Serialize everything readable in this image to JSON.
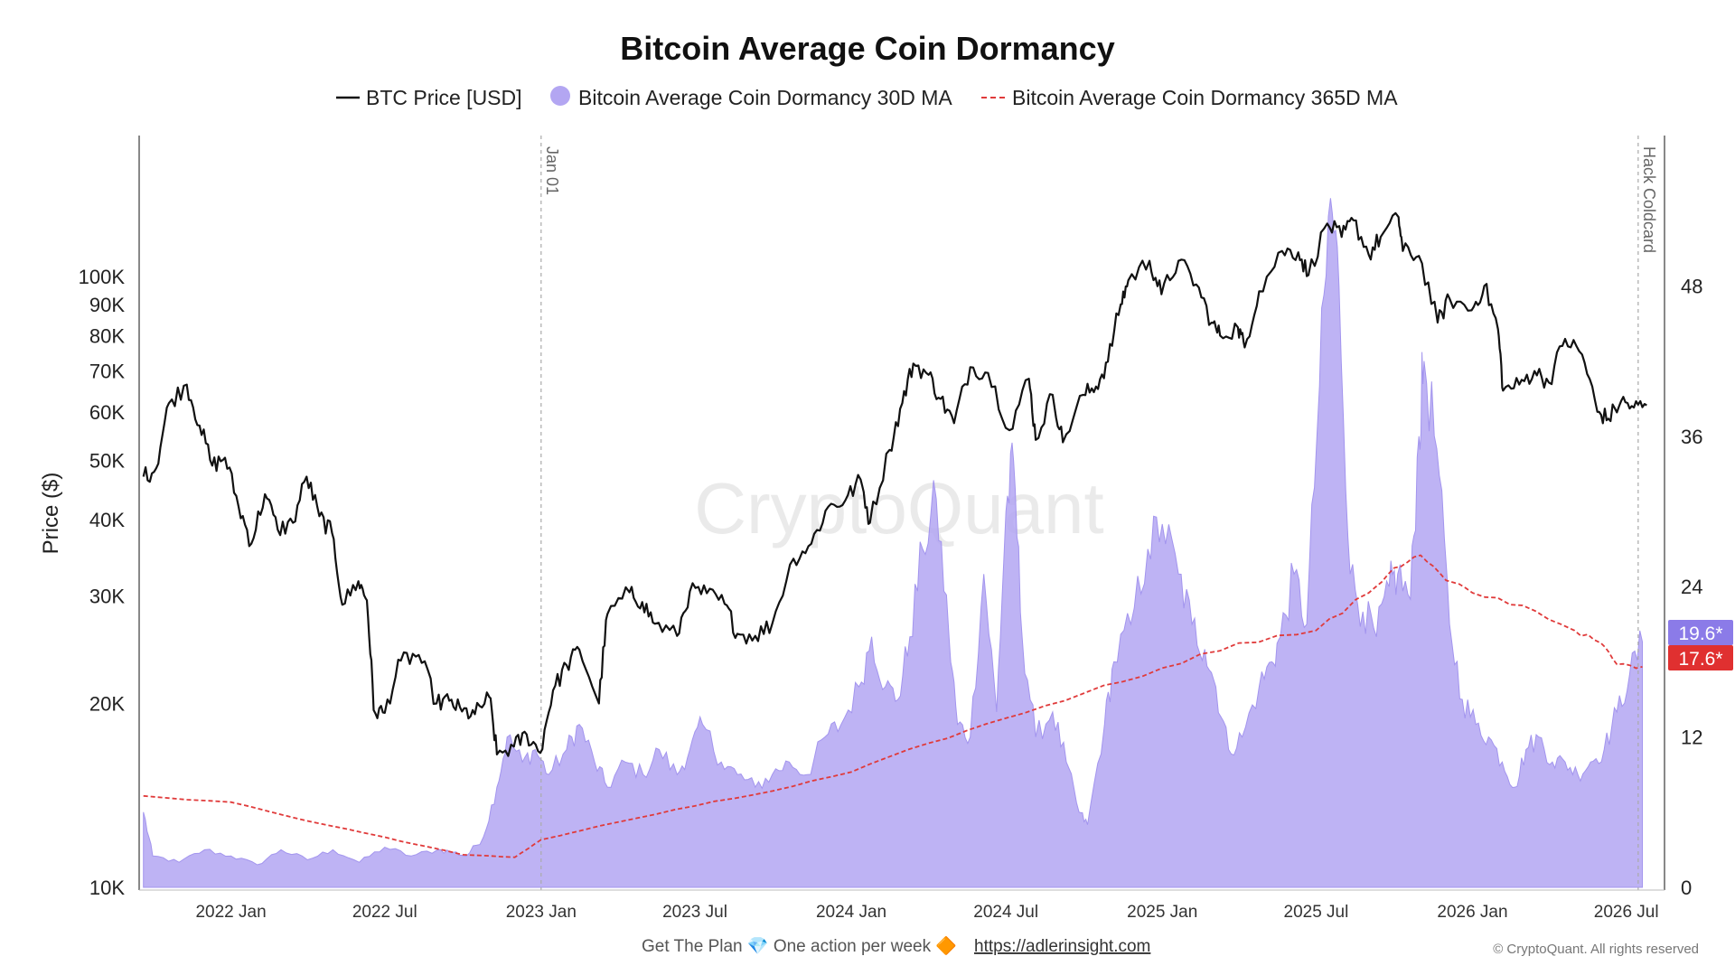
{
  "chart_data": {
    "type": "line",
    "title": "Bitcoin Average Coin Dormancy",
    "legend": {
      "placement": "top",
      "entries": [
        {
          "label": "BTC Price [USD]",
          "color": "#111111",
          "style": "solid-line"
        },
        {
          "label": "Bitcoin Average Coin Dormancy 30D MA",
          "color": "#b3a6f2",
          "style": "area"
        },
        {
          "label": "Bitcoin Average Coin Dormancy 365D MA",
          "color": "#e03a3a",
          "style": "dashed-line"
        }
      ]
    },
    "ylabel_left": "Price ($)",
    "y_left_scale": "log",
    "y_left_range": [
      10000,
      170000
    ],
    "y_left_ticks": [
      {
        "value": 10000,
        "label": "10K"
      },
      {
        "value": 20000,
        "label": "20K"
      },
      {
        "value": 30000,
        "label": "30K"
      },
      {
        "value": 40000,
        "label": "40K"
      },
      {
        "value": 50000,
        "label": "50K"
      },
      {
        "value": 60000,
        "label": "60K"
      },
      {
        "value": 70000,
        "label": "70K"
      },
      {
        "value": 80000,
        "label": "80K"
      },
      {
        "value": 90000,
        "label": "90K"
      },
      {
        "value": 100000,
        "label": "100K"
      }
    ],
    "y_right_range": [
      0,
      60
    ],
    "y_right_ticks": [
      {
        "value": 0,
        "label": "0"
      },
      {
        "value": 12,
        "label": "12"
      },
      {
        "value": 24,
        "label": "24"
      },
      {
        "value": 36,
        "label": "36"
      },
      {
        "value": 48,
        "label": "48"
      }
    ],
    "x_range": [
      "2021-09-15",
      "2026-08-15"
    ],
    "x_ticks": [
      {
        "value": "2022-01-01",
        "label": "2022 Jan"
      },
      {
        "value": "2022-07-01",
        "label": "2022 Jul"
      },
      {
        "value": "2023-01-01",
        "label": "2023 Jan"
      },
      {
        "value": "2023-07-01",
        "label": "2023 Jul"
      },
      {
        "value": "2024-01-01",
        "label": "2024 Jan"
      },
      {
        "value": "2024-07-01",
        "label": "2024 Jul"
      },
      {
        "value": "2025-01-01",
        "label": "2025 Jan"
      },
      {
        "value": "2025-07-01",
        "label": "2025 Jul"
      },
      {
        "value": "2026-01-01",
        "label": "2026 Jan"
      },
      {
        "value": "2026-07-01",
        "label": "2026 Jul"
      }
    ],
    "grid": false,
    "annotations": [
      {
        "x": "2023-01-01",
        "label": "Jan 01",
        "style": "vertical-dashed"
      },
      {
        "x": "2026-07-15",
        "label": "Hack Coldcard",
        "style": "vertical-dashed"
      }
    ],
    "badges": [
      {
        "label": "19.6*",
        "value": 19.6,
        "color": "#8b7be8"
      },
      {
        "label": "17.6*",
        "value": 17.6,
        "color": "#e03030"
      }
    ],
    "watermark": "CryptoQuant",
    "series": [
      {
        "name": "BTC Price [USD]",
        "axis": "left",
        "color": "#111111",
        "points": [
          [
            "2021-09-20",
            47000
          ],
          [
            "2021-10-05",
            48500
          ],
          [
            "2021-10-20",
            62000
          ],
          [
            "2021-11-10",
            66500
          ],
          [
            "2021-11-25",
            57000
          ],
          [
            "2021-12-10",
            49000
          ],
          [
            "2021-12-25",
            50500
          ],
          [
            "2022-01-10",
            42000
          ],
          [
            "2022-01-25",
            36500
          ],
          [
            "2022-02-10",
            44000
          ],
          [
            "2022-02-25",
            38500
          ],
          [
            "2022-03-15",
            39500
          ],
          [
            "2022-03-31",
            47000
          ],
          [
            "2022-04-15",
            40500
          ],
          [
            "2022-04-30",
            38000
          ],
          [
            "2022-05-12",
            29000
          ],
          [
            "2022-05-31",
            31700
          ],
          [
            "2022-06-10",
            29500
          ],
          [
            "2022-06-18",
            19500
          ],
          [
            "2022-07-01",
            19300
          ],
          [
            "2022-07-20",
            23500
          ],
          [
            "2022-08-10",
            24000
          ],
          [
            "2022-08-31",
            20000
          ],
          [
            "2022-09-15",
            20200
          ],
          [
            "2022-09-30",
            19400
          ],
          [
            "2022-10-15",
            19200
          ],
          [
            "2022-11-01",
            20500
          ],
          [
            "2022-11-10",
            16500
          ],
          [
            "2022-11-30",
            17000
          ],
          [
            "2022-12-15",
            17800
          ],
          [
            "2022-12-31",
            16600
          ],
          [
            "2023-01-15",
            21000
          ],
          [
            "2023-01-31",
            23100
          ],
          [
            "2023-02-15",
            24500
          ],
          [
            "2023-03-10",
            20000
          ],
          [
            "2023-03-20",
            28000
          ],
          [
            "2023-04-15",
            30400
          ],
          [
            "2023-04-30",
            29300
          ],
          [
            "2023-05-15",
            27000
          ],
          [
            "2023-06-10",
            25800
          ],
          [
            "2023-06-25",
            30500
          ],
          [
            "2023-07-15",
            30300
          ],
          [
            "2023-08-05",
            29100
          ],
          [
            "2023-08-20",
            26000
          ],
          [
            "2023-09-10",
            25800
          ],
          [
            "2023-09-30",
            27000
          ],
          [
            "2023-10-25",
            34500
          ],
          [
            "2023-11-15",
            36500
          ],
          [
            "2023-12-05",
            42000
          ],
          [
            "2023-12-25",
            43000
          ],
          [
            "2024-01-12",
            46500
          ],
          [
            "2024-01-23",
            39500
          ],
          [
            "2024-02-15",
            52000
          ],
          [
            "2024-03-01",
            62000
          ],
          [
            "2024-03-14",
            72000
          ],
          [
            "2024-04-01",
            69000
          ],
          [
            "2024-04-15",
            63000
          ],
          [
            "2024-05-01",
            57500
          ],
          [
            "2024-05-20",
            71000
          ],
          [
            "2024-06-10",
            69500
          ],
          [
            "2024-07-05",
            56000
          ],
          [
            "2024-07-28",
            68000
          ],
          [
            "2024-08-05",
            54000
          ],
          [
            "2024-08-25",
            64000
          ],
          [
            "2024-09-06",
            53500
          ],
          [
            "2024-09-30",
            64000
          ],
          [
            "2024-10-15",
            66000
          ],
          [
            "2024-10-29",
            72500
          ],
          [
            "2024-11-13",
            90000
          ],
          [
            "2024-11-22",
            98500
          ],
          [
            "2024-12-17",
            106000
          ],
          [
            "2024-12-31",
            93500
          ],
          [
            "2025-01-20",
            106000
          ],
          [
            "2025-02-10",
            97000
          ],
          [
            "2025-02-28",
            84000
          ],
          [
            "2025-03-10",
            80000
          ],
          [
            "2025-03-31",
            82500
          ],
          [
            "2025-04-08",
            76500
          ],
          [
            "2025-04-25",
            94500
          ],
          [
            "2025-05-22",
            110000
          ],
          [
            "2025-06-10",
            109500
          ],
          [
            "2025-06-22",
            100500
          ],
          [
            "2025-07-14",
            122000
          ],
          [
            "2025-07-31",
            116000
          ],
          [
            "2025-08-14",
            123500
          ],
          [
            "2025-09-01",
            108500
          ],
          [
            "2025-09-15",
            116000
          ],
          [
            "2025-10-06",
            125000
          ],
          [
            "2025-10-11",
            110000
          ],
          [
            "2025-10-30",
            108000
          ],
          [
            "2025-11-21",
            84000
          ],
          [
            "2025-12-05",
            92000
          ],
          [
            "2025-12-31",
            88000
          ],
          [
            "2026-01-15",
            96500
          ],
          [
            "2026-01-31",
            82000
          ],
          [
            "2026-02-06",
            65000
          ],
          [
            "2026-02-25",
            66500
          ],
          [
            "2026-03-15",
            70000
          ],
          [
            "2026-04-01",
            67000
          ],
          [
            "2026-04-20",
            79000
          ],
          [
            "2026-05-10",
            74500
          ],
          [
            "2026-05-28",
            60000
          ],
          [
            "2026-06-10",
            58500
          ],
          [
            "2026-06-25",
            62500
          ],
          [
            "2026-07-10",
            61000
          ],
          [
            "2026-07-25",
            61500
          ]
        ]
      },
      {
        "name": "Bitcoin Average Coin Dormancy 30D MA",
        "axis": "right",
        "color": "#b3a6f2",
        "points": [
          [
            "2021-09-20",
            6
          ],
          [
            "2021-10-01",
            2.5
          ],
          [
            "2021-11-01",
            2
          ],
          [
            "2021-12-01",
            3
          ],
          [
            "2022-01-01",
            2.5
          ],
          [
            "2022-02-01",
            1.8
          ],
          [
            "2022-03-01",
            3
          ],
          [
            "2022-04-01",
            2.2
          ],
          [
            "2022-05-01",
            3
          ],
          [
            "2022-06-01",
            2
          ],
          [
            "2022-07-01",
            3.2
          ],
          [
            "2022-08-01",
            2.5
          ],
          [
            "2022-09-01",
            3
          ],
          [
            "2022-09-20",
            2.8
          ],
          [
            "2022-10-05",
            2.5
          ],
          [
            "2022-10-25",
            4
          ],
          [
            "2022-11-10",
            8
          ],
          [
            "2022-11-22",
            12
          ],
          [
            "2022-12-10",
            10
          ],
          [
            "2022-12-25",
            11
          ],
          [
            "2023-01-10",
            9
          ],
          [
            "2023-01-31",
            11
          ],
          [
            "2023-02-15",
            13
          ],
          [
            "2023-03-05",
            10
          ],
          [
            "2023-03-20",
            8
          ],
          [
            "2023-04-10",
            10
          ],
          [
            "2023-05-01",
            9
          ],
          [
            "2023-05-20",
            11
          ],
          [
            "2023-06-10",
            9
          ],
          [
            "2023-06-25",
            11
          ],
          [
            "2023-07-10",
            13
          ],
          [
            "2023-08-01",
            10
          ],
          [
            "2023-08-20",
            9
          ],
          [
            "2023-09-10",
            8
          ],
          [
            "2023-09-30",
            9
          ],
          [
            "2023-10-20",
            10
          ],
          [
            "2023-11-10",
            9
          ],
          [
            "2023-12-01",
            12
          ],
          [
            "2023-12-20",
            13
          ],
          [
            "2024-01-10",
            16
          ],
          [
            "2024-01-25",
            20
          ],
          [
            "2024-02-10",
            16
          ],
          [
            "2024-02-25",
            15
          ],
          [
            "2024-03-10",
            20
          ],
          [
            "2024-03-25",
            27
          ],
          [
            "2024-04-10",
            31
          ],
          [
            "2024-04-25",
            20
          ],
          [
            "2024-05-05",
            13
          ],
          [
            "2024-05-20",
            12
          ],
          [
            "2024-06-05",
            25
          ],
          [
            "2024-06-20",
            14
          ],
          [
            "2024-07-01",
            30
          ],
          [
            "2024-07-10",
            34
          ],
          [
            "2024-07-20",
            20
          ],
          [
            "2024-08-05",
            12
          ],
          [
            "2024-08-25",
            14
          ],
          [
            "2024-09-10",
            10
          ],
          [
            "2024-09-25",
            6
          ],
          [
            "2024-10-05",
            5
          ],
          [
            "2024-10-25",
            13
          ],
          [
            "2024-11-05",
            18
          ],
          [
            "2024-11-25",
            21
          ],
          [
            "2024-12-15",
            27
          ],
          [
            "2025-01-01",
            29
          ],
          [
            "2025-01-20",
            25
          ],
          [
            "2025-02-05",
            21
          ],
          [
            "2025-02-20",
            19
          ],
          [
            "2025-03-05",
            16
          ],
          [
            "2025-03-20",
            11
          ],
          [
            "2025-04-05",
            12
          ],
          [
            "2025-04-25",
            16
          ],
          [
            "2025-05-10",
            18
          ],
          [
            "2025-05-20",
            20
          ],
          [
            "2025-06-05",
            25
          ],
          [
            "2025-06-20",
            21
          ],
          [
            "2025-07-05",
            40
          ],
          [
            "2025-07-18",
            55
          ],
          [
            "2025-07-28",
            48
          ],
          [
            "2025-08-10",
            25
          ],
          [
            "2025-08-25",
            22
          ],
          [
            "2025-09-10",
            20
          ],
          [
            "2025-09-25",
            24
          ],
          [
            "2025-10-05",
            25
          ],
          [
            "2025-10-20",
            23
          ],
          [
            "2025-10-30",
            36
          ],
          [
            "2025-11-05",
            42
          ],
          [
            "2025-11-20",
            35
          ],
          [
            "2025-12-05",
            21
          ],
          [
            "2025-12-20",
            15
          ],
          [
            "2026-01-05",
            13
          ],
          [
            "2026-01-20",
            12
          ],
          [
            "2026-02-05",
            10
          ],
          [
            "2026-02-20",
            8
          ],
          [
            "2026-03-05",
            11
          ],
          [
            "2026-03-20",
            12
          ],
          [
            "2026-04-05",
            10
          ],
          [
            "2026-04-20",
            10
          ],
          [
            "2026-05-05",
            9
          ],
          [
            "2026-05-20",
            10
          ],
          [
            "2026-06-05",
            11
          ],
          [
            "2026-06-20",
            14
          ],
          [
            "2026-07-05",
            17
          ],
          [
            "2026-07-20",
            19.6
          ]
        ]
      },
      {
        "name": "Bitcoin Average Coin Dormancy 365D MA",
        "axis": "right",
        "color": "#e03a3a",
        "points": [
          [
            "2021-09-20",
            7.3
          ],
          [
            "2022-01-01",
            6.8
          ],
          [
            "2022-04-01",
            5.3
          ],
          [
            "2022-07-01",
            4
          ],
          [
            "2022-10-01",
            2.6
          ],
          [
            "2022-12-01",
            2.4
          ],
          [
            "2023-01-01",
            3.8
          ],
          [
            "2023-04-01",
            5.2
          ],
          [
            "2023-07-01",
            6.5
          ],
          [
            "2023-10-01",
            7.7
          ],
          [
            "2024-01-01",
            9.2
          ],
          [
            "2024-04-01",
            11.5
          ],
          [
            "2024-07-01",
            13.5
          ],
          [
            "2024-10-01",
            15.5
          ],
          [
            "2025-01-01",
            17.5
          ],
          [
            "2025-04-01",
            19.5
          ],
          [
            "2025-07-01",
            20.5
          ],
          [
            "2025-09-01",
            23.5
          ],
          [
            "2025-10-01",
            25.5
          ],
          [
            "2025-11-01",
            26.5
          ],
          [
            "2025-12-01",
            24.5
          ],
          [
            "2026-01-01",
            23.5
          ],
          [
            "2026-03-01",
            22.5
          ],
          [
            "2026-05-01",
            20.5
          ],
          [
            "2026-06-01",
            19.5
          ],
          [
            "2026-06-20",
            17.8
          ],
          [
            "2026-07-20",
            17.6
          ]
        ]
      }
    ]
  },
  "footer": {
    "plan_text": "Get The Plan 💎 One action per week 🔶",
    "link_text": "https://adlerinsight.com",
    "copyright": "© CryptoQuant. All rights reserved"
  }
}
